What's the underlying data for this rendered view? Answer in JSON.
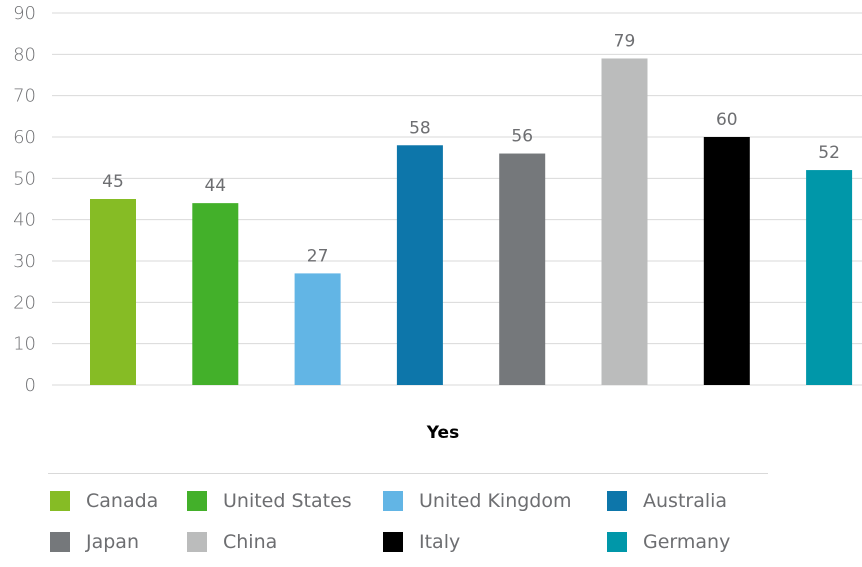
{
  "chart_data": {
    "type": "bar",
    "categories": [
      "Canada",
      "United States",
      "United Kingdom",
      "Australia",
      "Japan",
      "China",
      "Italy",
      "Germany"
    ],
    "values": [
      45,
      44,
      27,
      58,
      56,
      79,
      60,
      52
    ],
    "colors": [
      "#86bc25",
      "#43b02a",
      "#62b5e5",
      "#0d76aa",
      "#75787b",
      "#bbbcbc",
      "#000000",
      "#0097a9"
    ],
    "xlabel": "Yes",
    "ylabel": "",
    "ylim": [
      0,
      90
    ],
    "yticks": [
      0,
      10,
      20,
      30,
      40,
      50,
      60,
      70,
      80,
      90
    ],
    "grid": true,
    "legend_position": "bottom"
  }
}
